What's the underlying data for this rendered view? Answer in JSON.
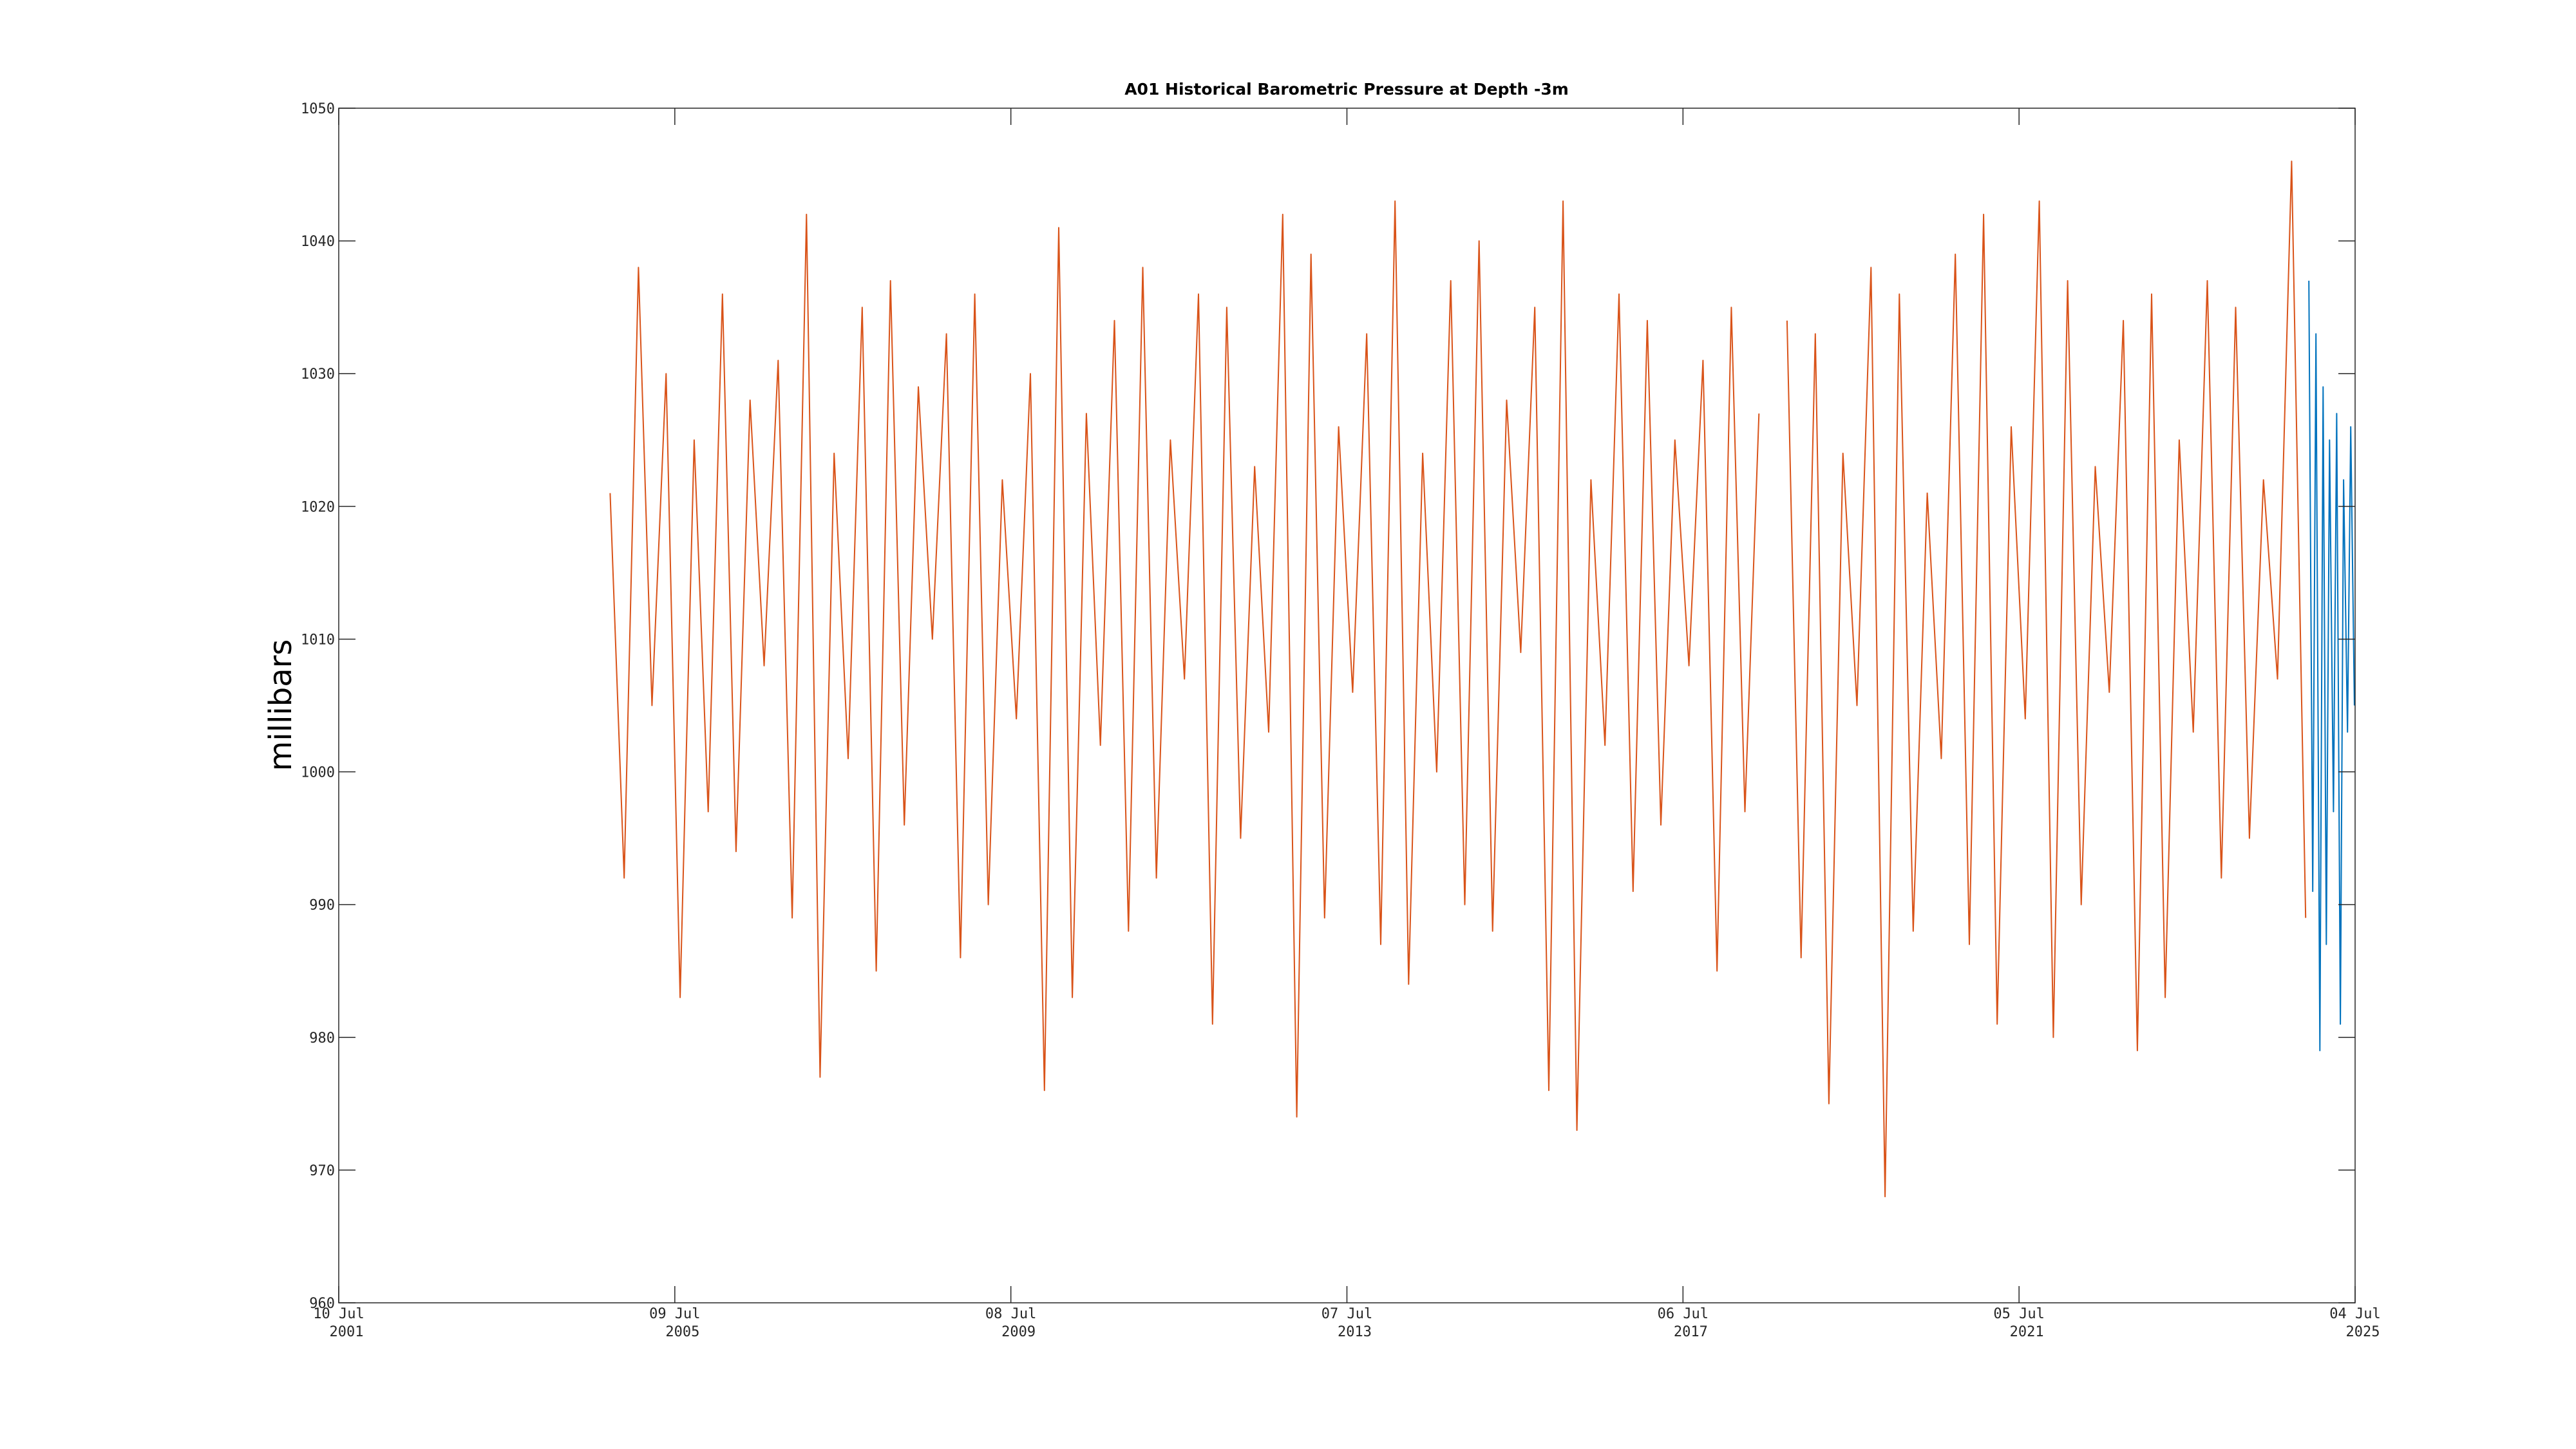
{
  "chart_data": {
    "type": "line",
    "title": "A01 Historical Barometric Pressure at Depth -3m",
    "ylabel": "millibars",
    "xlim": [
      "2001-07-10",
      "2025-07-04"
    ],
    "xticks": [
      {
        "value": "2001-07-10",
        "label": [
          "10 Jul",
          "2001"
        ]
      },
      {
        "value": "2005-07-09",
        "label": [
          "09 Jul",
          "2005"
        ]
      },
      {
        "value": "2009-07-08",
        "label": [
          "08 Jul",
          "2009"
        ]
      },
      {
        "value": "2013-07-07",
        "label": [
          "07 Jul",
          "2013"
        ]
      },
      {
        "value": "2017-07-06",
        "label": [
          "06 Jul",
          "2017"
        ]
      },
      {
        "value": "2021-07-05",
        "label": [
          "05 Jul",
          "2021"
        ]
      },
      {
        "value": "2025-07-04",
        "label": [
          "04 Jul",
          "2025"
        ]
      }
    ],
    "ylim": [
      960,
      1050
    ],
    "yticks": [
      960,
      970,
      980,
      990,
      1000,
      1010,
      1020,
      1030,
      1040,
      1050
    ],
    "series": [
      {
        "color": "#d95319",
        "x": [
          "2004-10-01",
          "2004-12-01",
          "2005-02-01",
          "2005-04-01",
          "2005-06-01",
          "2005-08-01",
          "2005-10-01",
          "2005-12-01",
          "2006-02-01",
          "2006-04-01",
          "2006-06-01",
          "2006-08-01",
          "2006-10-01",
          "2006-12-01",
          "2007-02-01",
          "2007-04-01",
          "2007-06-01",
          "2007-08-01",
          "2007-10-01",
          "2007-12-01",
          "2008-02-01",
          "2008-04-01",
          "2008-06-01",
          "2008-08-01",
          "2008-10-01",
          "2008-12-01",
          "2009-02-01",
          "2009-04-01",
          "2009-06-01",
          "2009-08-01",
          "2009-10-01",
          "2009-12-01",
          "2010-02-01",
          "2010-04-01",
          "2010-06-01",
          "2010-08-01",
          "2010-10-01",
          "2010-12-01",
          "2011-02-01",
          "2011-04-01",
          "2011-06-01",
          "2011-08-01",
          "2011-10-01",
          "2011-12-01",
          "2012-02-01",
          "2012-04-01",
          "2012-06-01",
          "2012-08-01",
          "2012-10-01",
          "2012-12-01",
          "2013-02-01",
          "2013-04-01",
          "2013-06-01",
          "2013-08-01",
          "2013-10-01",
          "2013-12-01",
          "2014-02-01",
          "2014-04-01",
          "2014-06-01",
          "2014-08-01",
          "2014-10-01",
          "2014-12-01",
          "2015-02-01",
          "2015-04-01",
          "2015-06-01",
          "2015-08-01",
          "2015-10-01",
          "2015-12-01",
          "2016-02-01",
          "2016-04-01",
          "2016-06-01",
          "2016-08-01",
          "2016-10-01",
          "2016-12-01",
          "2017-02-01",
          "2017-04-01",
          "2017-06-01",
          "2017-08-01",
          "2017-10-01",
          "2017-12-01",
          "2018-02-01",
          "2018-04-01",
          "2018-06-01",
          "2018-08-01",
          "2018-10-01",
          "2018-12-01",
          "2019-02-01",
          "2019-04-01",
          "2019-06-01",
          "2019-08-01",
          "2019-10-01",
          "2019-12-01",
          "2020-02-01",
          "2020-04-01",
          "2020-06-01",
          "2020-08-01",
          "2020-10-01",
          "2020-12-01",
          "2021-02-01",
          "2021-04-01",
          "2021-06-01",
          "2021-08-01",
          "2021-10-01",
          "2021-12-01",
          "2022-02-01",
          "2022-04-01",
          "2022-06-01",
          "2022-08-01",
          "2022-10-01",
          "2022-12-01",
          "2023-02-01",
          "2023-04-01",
          "2023-06-01",
          "2023-08-01",
          "2023-10-01",
          "2023-12-01",
          "2024-02-01",
          "2024-04-01",
          "2024-06-01",
          "2024-08-01",
          "2024-10-01",
          "2024-12-01"
        ],
        "values": [
          1021,
          992,
          1038,
          1005,
          1030,
          983,
          1025,
          997,
          1036,
          994,
          1028,
          1008,
          1031,
          989,
          1042,
          977,
          1024,
          1001,
          1035,
          985,
          1037,
          996,
          1029,
          1010,
          1033,
          986,
          1036,
          990,
          1022,
          1004,
          1030,
          976,
          1041,
          983,
          1027,
          1002,
          1034,
          988,
          1038,
          992,
          1025,
          1007,
          1036,
          981,
          1035,
          995,
          1023,
          1003,
          1042,
          974,
          1039,
          989,
          1026,
          1006,
          1033,
          987,
          1043,
          984,
          1024,
          1000,
          1037,
          990,
          1040,
          988,
          1028,
          1009,
          1035,
          976,
          1043,
          973,
          1022,
          1002,
          1036,
          991,
          1034,
          996,
          1025,
          1008,
          1031,
          985,
          1035,
          997,
          1027,
          null,
          1034,
          986,
          1033,
          975,
          1024,
          1005,
          1038,
          968,
          1036,
          988,
          1021,
          1001,
          1039,
          987,
          1042,
          981,
          1026,
          1004,
          1043,
          980,
          1037,
          990,
          1023,
          1006,
          1034,
          979,
          1036,
          983,
          1025,
          1003,
          1037,
          992,
          1035,
          995,
          1022,
          1007,
          1046,
          989
        ]
      },
      {
        "color": "#0072bd",
        "x": [
          "2024-12-15",
          "2025-01-01",
          "2025-01-15",
          "2025-02-01",
          "2025-02-15",
          "2025-03-01",
          "2025-03-15",
          "2025-04-01",
          "2025-04-15",
          "2025-05-01",
          "2025-05-15",
          "2025-06-01",
          "2025-06-15",
          "2025-07-01"
        ],
        "values": [
          1037,
          991,
          1033,
          979,
          1029,
          987,
          1025,
          997,
          1027,
          981,
          1022,
          1003,
          1026,
          1005
        ]
      }
    ]
  }
}
